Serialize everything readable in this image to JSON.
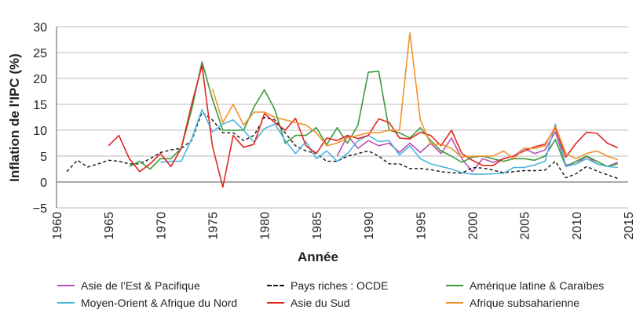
{
  "chart_data": {
    "type": "line",
    "title": "",
    "xlabel": "Année",
    "ylabel": "Inflation de l'IPC (%)",
    "xlim": [
      1960,
      2015
    ],
    "ylim": [
      -5,
      30
    ],
    "xticks": [
      "1960",
      "1965",
      "1970",
      "1975",
      "1980",
      "1985",
      "1990",
      "1995",
      "2000",
      "2005",
      "2010",
      "2015"
    ],
    "yticks": [
      "−5",
      "0",
      "5",
      "10",
      "15",
      "20",
      "25",
      "30"
    ],
    "grid": "horizontal",
    "legend_position": "bottom",
    "series": [
      {
        "name": "Asie de l’Est & Pacifique",
        "color": "#b84fb6",
        "dash": false,
        "start_year": 1987,
        "values": [
          5,
          9,
          6.5,
          8,
          7,
          7.5,
          5.7,
          7.5,
          5.7,
          7.5,
          5.5,
          8.5,
          4.5,
          2,
          4.5,
          3.8,
          4.5,
          5,
          6.5,
          5.5,
          6.2,
          9.7,
          3.3,
          3.5,
          5,
          3.5,
          3,
          3.8
        ]
      },
      {
        "name": "Pays riches : OCDE",
        "color": "#111111",
        "dash": true,
        "start_year": 1961,
        "values": [
          2,
          4.2,
          2.9,
          3.5,
          4.2,
          4,
          3.5,
          3.5,
          4.5,
          5.7,
          6.2,
          6.5,
          8,
          13.5,
          12,
          9.5,
          9.5,
          8,
          9,
          12.5,
          12,
          9.5,
          7,
          6,
          5.5,
          4,
          4,
          5,
          5.5,
          6,
          5,
          3.5,
          3.5,
          2.6,
          2.6,
          2.4,
          2,
          1.8,
          1.7,
          2.8,
          2.7,
          2.3,
          1.8,
          2,
          2.2,
          2.2,
          2.3,
          4,
          0.8,
          1.6,
          3,
          2.1,
          1.4,
          0.7
        ]
      },
      {
        "name": "Amérique latine & Caraïbes",
        "color": "#3c9a3c",
        "dash": false,
        "start_year": 1967,
        "values": [
          3,
          4,
          2.5,
          4.5,
          4.5,
          6.5,
          14,
          23.2,
          16,
          10,
          10,
          10,
          14.5,
          17.8,
          14,
          7.5,
          9,
          9,
          10.5,
          7.2,
          10.5,
          7.5,
          11,
          21.2,
          21.4,
          10,
          9.5,
          8.5,
          10.5,
          8,
          6,
          5,
          3.8,
          4.8,
          5,
          4.5,
          4,
          4.5,
          4.5,
          4.2,
          5,
          8.2,
          3,
          4,
          5,
          4,
          3,
          3.5
        ]
      },
      {
        "name": "Moyen-Orient & Afrique du Nord",
        "color": "#4fb4de",
        "dash": false,
        "start_year": 1970,
        "values": [
          3.8,
          4,
          4,
          8.3,
          14,
          9.7,
          11.2,
          12,
          10,
          7.7,
          10.3,
          11.2,
          8,
          5.5,
          7.8,
          4.5,
          6,
          4,
          5.5,
          8,
          9,
          7.8,
          8,
          5.2,
          7,
          4.5,
          3.5,
          3,
          2.5,
          1.8,
          1.5,
          1.5,
          1.6,
          1.7,
          2.8,
          2.8,
          3.3,
          4,
          11.2,
          3,
          3.5,
          4.5,
          3.5,
          3,
          2.8
        ]
      },
      {
        "name": "Asie du Sud",
        "color": "#e0271f",
        "dash": false,
        "start_year": 1965,
        "values": [
          7,
          9,
          4.5,
          2,
          3.5,
          5.5,
          3,
          6.5,
          15,
          22.5,
          7,
          -1,
          9,
          6.7,
          7.3,
          13.2,
          11.5,
          10,
          12.3,
          7,
          5.5,
          8.5,
          8,
          9,
          8.4,
          9,
          12.2,
          11.5,
          8.5,
          8.3,
          9.6,
          9,
          7,
          10,
          5.5,
          4.2,
          3.2,
          3.2,
          4.5,
          5,
          6,
          6.8,
          7.3,
          10.5,
          4.8,
          7.5,
          9.6,
          9.4,
          7.5,
          6.6
        ]
      },
      {
        "name": "Afrique subsaharienne",
        "color": "#f0922b",
        "dash": false,
        "start_year": 1975,
        "values": [
          18,
          11.5,
          15,
          11,
          13.5,
          13.5,
          12.5,
          12,
          11.5,
          11,
          9.5,
          7,
          7.5,
          8.5,
          9,
          9.5,
          9.5,
          10,
          10,
          28.8,
          12,
          7.3,
          7.3,
          6.5,
          4.8,
          5,
          5,
          5,
          6,
          4.5,
          6.5,
          6.5,
          7,
          10.8,
          5.5,
          4.5,
          5.5,
          6,
          5,
          4.3
        ]
      }
    ]
  }
}
